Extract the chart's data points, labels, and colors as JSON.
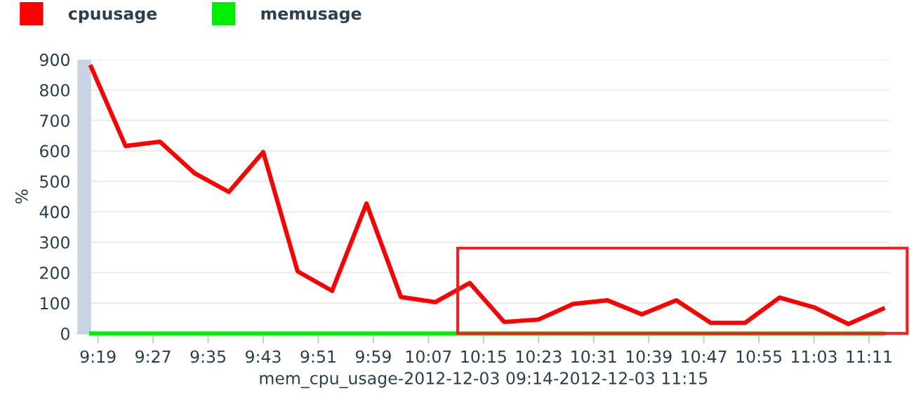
{
  "chart_data": {
    "type": "line",
    "xlabel": "mem_cpu_usage-2012-12-03 09:14-2012-12-03 11:15",
    "ylabel": "%",
    "x": [
      "2012-12-03T09:18",
      "2012-12-03T09:23",
      "2012-12-03T09:28",
      "2012-12-03T09:33",
      "2012-12-03T09:38",
      "2012-12-03T09:43",
      "2012-12-03T09:48",
      "2012-12-03T09:53",
      "2012-12-03T09:58",
      "2012-12-03T10:03",
      "2012-12-03T10:08",
      "2012-12-03T10:13",
      "2012-12-03T10:18",
      "2012-12-03T10:23",
      "2012-12-03T10:28",
      "2012-12-03T10:33",
      "2012-12-03T10:38",
      "2012-12-03T10:43",
      "2012-12-03T10:48",
      "2012-12-03T10:53",
      "2012-12-03T10:58",
      "2012-12-03T11:03",
      "2012-12-03T11:08",
      "2012-12-03T11:13"
    ],
    "series": [
      {
        "name": "cpuusage",
        "color": "#ff0000",
        "values": [
          876,
          616,
          630,
          527,
          465,
          596,
          204,
          140,
          427,
          120,
          103,
          166,
          38,
          46,
          97,
          109,
          63,
          109,
          35,
          35,
          118,
          86,
          31,
          81
        ]
      },
      {
        "name": "memusage",
        "color": "#00ee00",
        "values": [
          0,
          0,
          0,
          0,
          0,
          0,
          0,
          0,
          0,
          0,
          0,
          0,
          0,
          0,
          0,
          0,
          0,
          0,
          0,
          0,
          0,
          0,
          0,
          0
        ]
      }
    ],
    "xlim": [
      "2012-12-03T09:16",
      "2012-12-03T11:14"
    ],
    "xticks": [
      {
        "value": "2012-12-03T09:19",
        "label": "9:19"
      },
      {
        "value": "2012-12-03T09:27",
        "label": "9:27"
      },
      {
        "value": "2012-12-03T09:35",
        "label": "9:35"
      },
      {
        "value": "2012-12-03T09:43",
        "label": "9:43"
      },
      {
        "value": "2012-12-03T09:51",
        "label": "9:51"
      },
      {
        "value": "2012-12-03T09:59",
        "label": "9:59"
      },
      {
        "value": "2012-12-03T10:07",
        "label": "10:07"
      },
      {
        "value": "2012-12-03T10:15",
        "label": "10:15"
      },
      {
        "value": "2012-12-03T10:23",
        "label": "10:23"
      },
      {
        "value": "2012-12-03T10:31",
        "label": "10:31"
      },
      {
        "value": "2012-12-03T10:39",
        "label": "10:39"
      },
      {
        "value": "2012-12-03T10:47",
        "label": "10:47"
      },
      {
        "value": "2012-12-03T10:55",
        "label": "10:55"
      },
      {
        "value": "2012-12-03T11:03",
        "label": "11:03"
      },
      {
        "value": "2012-12-03T11:11",
        "label": "11:11"
      }
    ],
    "ylim": [
      0,
      900
    ],
    "yticks": [
      0,
      100,
      200,
      300,
      400,
      500,
      600,
      700,
      800,
      900
    ],
    "bands": [
      {
        "axis": "x",
        "from": "2012-12-03T09:16",
        "to": "2012-12-03T09:18",
        "color": "#c8d4e4"
      }
    ],
    "grid": "y",
    "legend": "top left",
    "marker": "none",
    "line_style": "solid"
  }
}
